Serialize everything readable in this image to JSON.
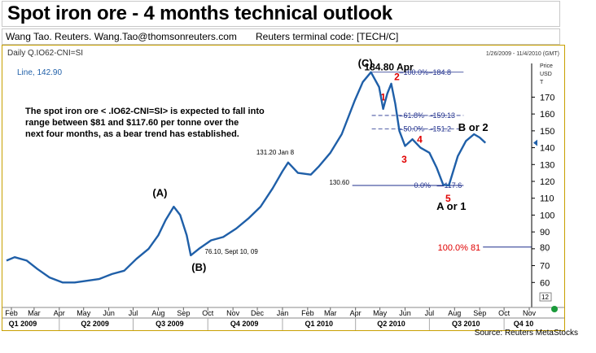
{
  "header": {
    "title": "Spot iron ore  - 4 months technical outlook",
    "byline": "Wang Tao.  Reuters.  Wang.Tao@thomsonreuters.com",
    "terminal": "Reuters terminal code:  [TECH/C]"
  },
  "chart_header": {
    "instrument": "Daily Q.IO62-CNI=SI",
    "date_range": "1/26/2009 - 11/4/2010 (GMT)",
    "series_label": "Line, 142.90",
    "unit_lines": [
      "Price",
      "USD",
      "T"
    ]
  },
  "source": "Source: Reuters MetaStocks",
  "chart_data": {
    "type": "line",
    "series": [
      {
        "x": [
          "2009-01-26",
          "2009-02-05",
          "2009-02-20",
          "2009-03-05",
          "2009-03-20",
          "2009-04-05",
          "2009-04-20",
          "2009-05-05",
          "2009-05-20",
          "2009-06-05",
          "2009-06-20",
          "2009-07-05",
          "2009-07-20",
          "2009-08-01",
          "2009-08-10",
          "2009-08-20",
          "2009-08-28",
          "2009-09-05",
          "2009-09-10",
          "2009-09-20",
          "2009-10-05",
          "2009-10-20",
          "2009-11-05",
          "2009-11-20",
          "2009-12-05",
          "2009-12-20",
          "2010-01-01",
          "2010-01-08",
          "2010-01-20",
          "2010-02-05",
          "2010-02-15",
          "2010-03-01",
          "2010-03-15",
          "2010-03-31",
          "2010-04-10",
          "2010-04-20",
          "2010-04-30",
          "2010-05-05",
          "2010-05-10",
          "2010-05-15",
          "2010-05-20",
          "2010-05-25",
          "2010-06-01",
          "2010-06-10",
          "2010-06-20",
          "2010-07-01",
          "2010-07-10",
          "2010-07-18",
          "2010-07-25",
          "2010-08-05",
          "2010-08-15",
          "2010-08-25",
          "2010-09-01",
          "2010-09-08"
        ],
        "y": [
          73,
          75,
          73,
          68,
          63,
          60,
          60,
          61,
          62,
          65,
          67,
          74,
          80,
          88,
          97,
          105,
          100,
          88,
          76.1,
          80,
          85,
          87,
          92,
          98,
          105,
          116,
          126,
          131.2,
          125,
          124,
          129,
          137,
          148,
          168,
          179,
          184.8,
          176,
          163,
          172,
          178,
          166,
          150,
          141,
          145,
          140,
          137,
          128,
          118,
          117.6,
          135,
          144,
          148,
          146,
          142.9
        ]
      }
    ],
    "ylim": [
      50,
      190
    ],
    "yticks": [
      60,
      70,
      80,
      90,
      100,
      110,
      120,
      130,
      140,
      150,
      160,
      170
    ],
    "y_tick_labels": [
      "60",
      "70",
      "80",
      "90",
      "100",
      "110",
      "120",
      "130",
      "140",
      "150",
      "160",
      "170"
    ],
    "month_labels": [
      [
        "Feb",
        "2009-02-01"
      ],
      [
        "Mar",
        "2009-03-01"
      ],
      [
        "Apr",
        "2009-04-01"
      ],
      [
        "May",
        "2009-05-01"
      ],
      [
        "Jun",
        "2009-06-01"
      ],
      [
        "Jul",
        "2009-07-01"
      ],
      [
        "Aug",
        "2009-08-01"
      ],
      [
        "Sep",
        "2009-09-01"
      ],
      [
        "Oct",
        "2009-10-01"
      ],
      [
        "Nov",
        "2009-11-01"
      ],
      [
        "Dec",
        "2009-12-01"
      ],
      [
        "Jan",
        "2010-01-01"
      ],
      [
        "Feb",
        "2010-02-01"
      ],
      [
        "Mar",
        "2010-03-01"
      ],
      [
        "Apr",
        "2010-04-01"
      ],
      [
        "May",
        "2010-05-01"
      ],
      [
        "Jun",
        "2010-06-01"
      ],
      [
        "Jul",
        "2010-07-01"
      ],
      [
        "Aug",
        "2010-08-01"
      ],
      [
        "Sep",
        "2010-09-01"
      ],
      [
        "Oct",
        "2010-10-01"
      ],
      [
        "Nov",
        "2010-11-01"
      ]
    ],
    "quarter_labels": [
      [
        "Q1 2009",
        "2009-02-15"
      ],
      [
        "Q2 2009",
        "2009-05-15"
      ],
      [
        "Q3 2009",
        "2009-08-15"
      ],
      [
        "Q4 2009",
        "2009-11-15"
      ],
      [
        "Q1 2010",
        "2010-02-15"
      ],
      [
        "Q2 2010",
        "2010-05-15"
      ],
      [
        "Q3 2010",
        "2010-08-15"
      ],
      [
        "Q4 10",
        "2010-10-25"
      ]
    ],
    "fib_levels": [
      {
        "label": "100.0%",
        "value": "184.8",
        "price": 184.8
      },
      {
        "label": "61.8%",
        "value": "159.13",
        "price": 159.13
      },
      {
        "label": "50.0%",
        "value": "151.2",
        "price": 151.2
      },
      {
        "label": "0.0%",
        "value": "117.6",
        "price": 117.6
      }
    ],
    "target": {
      "label": "100.0% 81",
      "price": 81,
      "axis_label": "80"
    },
    "marker_12": "12",
    "annotations": [
      {
        "text": "(C)",
        "x": "2010-04-13",
        "y": 188,
        "size": 13,
        "bold": true
      },
      {
        "text": "184.80 Apr",
        "x": "2010-05-12",
        "y": 186,
        "size": 12,
        "bold": true
      },
      {
        "text": "131.20 Jan 8",
        "x": "2009-12-23",
        "y": 136,
        "size": 8,
        "bold": false
      },
      {
        "text": "130.60",
        "x": "2010-03-12",
        "y": 118,
        "size": 8,
        "bold": false
      },
      {
        "text": "(A)",
        "x": "2009-08-03",
        "y": 111,
        "size": 13,
        "bold": true
      },
      {
        "text": "(B)",
        "x": "2009-09-20",
        "y": 67,
        "size": 13,
        "bold": true
      },
      {
        "text": "76.10, Sept 10, 09",
        "x": "2009-10-30",
        "y": 77,
        "size": 8,
        "bold": false
      },
      {
        "text": "B or 2",
        "x": "2010-08-24",
        "y": 150,
        "size": 13,
        "bold": true
      },
      {
        "text": "A or 1",
        "x": "2010-07-28",
        "y": 103,
        "size": 13,
        "bold": true
      }
    ],
    "wave_labels": [
      {
        "text": "1",
        "x": "2010-05-05",
        "y": 168
      },
      {
        "text": "2",
        "x": "2010-05-22",
        "y": 180
      },
      {
        "text": "3",
        "x": "2010-05-31",
        "y": 131
      },
      {
        "text": "4",
        "x": "2010-06-19",
        "y": 143
      },
      {
        "text": "5",
        "x": "2010-07-24",
        "y": 108
      }
    ],
    "comment": [
      "The spot iron ore < .IO62-CNI=SI> is expected to fall into",
      "range between $81 and  $117.60 per tonne over the",
      "next four months, as a bear trend has established."
    ],
    "colors": {
      "line": "#1f5fa8",
      "fib": "#1f2f8c",
      "wave": "#e00000",
      "target": "#e00000",
      "target_line": "#1f2f8c"
    }
  }
}
